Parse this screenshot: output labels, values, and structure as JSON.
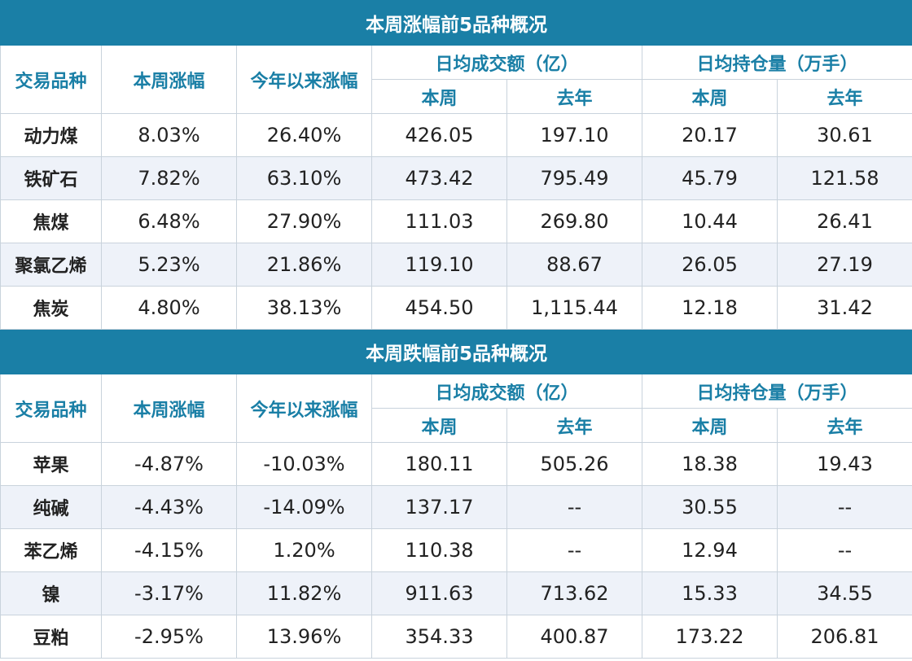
{
  "headers": {
    "product": "交易品种",
    "week_change": "本周涨幅",
    "ytd_change": "今年以来涨幅",
    "turnover": "日均成交额（亿）",
    "open_interest": "日均持仓量（万手）",
    "this_week": "本周",
    "last_year": "去年"
  },
  "gainers": {
    "title": "本周涨幅前5品种概况",
    "rows": [
      [
        "动力煤",
        "8.03%",
        "26.40%",
        "426.05",
        "197.10",
        "20.17",
        "30.61"
      ],
      [
        "铁矿石",
        "7.82%",
        "63.10%",
        "473.42",
        "795.49",
        "45.79",
        "121.58"
      ],
      [
        "焦煤",
        "6.48%",
        "27.90%",
        "111.03",
        "269.80",
        "10.44",
        "26.41"
      ],
      [
        "聚氯乙烯",
        "5.23%",
        "21.86%",
        "119.10",
        "88.67",
        "26.05",
        "27.19"
      ],
      [
        "焦炭",
        "4.80%",
        "38.13%",
        "454.50",
        "1,115.44",
        "12.18",
        "31.42"
      ]
    ]
  },
  "losers": {
    "title": "本周跌幅前5品种概况",
    "rows": [
      [
        "苹果",
        "-4.87%",
        "-10.03%",
        "180.11",
        "505.26",
        "18.38",
        "19.43"
      ],
      [
        "纯碱",
        "-4.43%",
        "-14.09%",
        "137.17",
        "--",
        "30.55",
        "--"
      ],
      [
        "苯乙烯",
        "-4.15%",
        "1.20%",
        "110.38",
        "--",
        "12.94",
        "--"
      ],
      [
        "镍",
        "-3.17%",
        "11.82%",
        "911.63",
        "713.62",
        "15.33",
        "34.55"
      ],
      [
        "豆粕",
        "-2.95%",
        "13.96%",
        "354.33",
        "400.87",
        "173.22",
        "206.81"
      ]
    ]
  }
}
